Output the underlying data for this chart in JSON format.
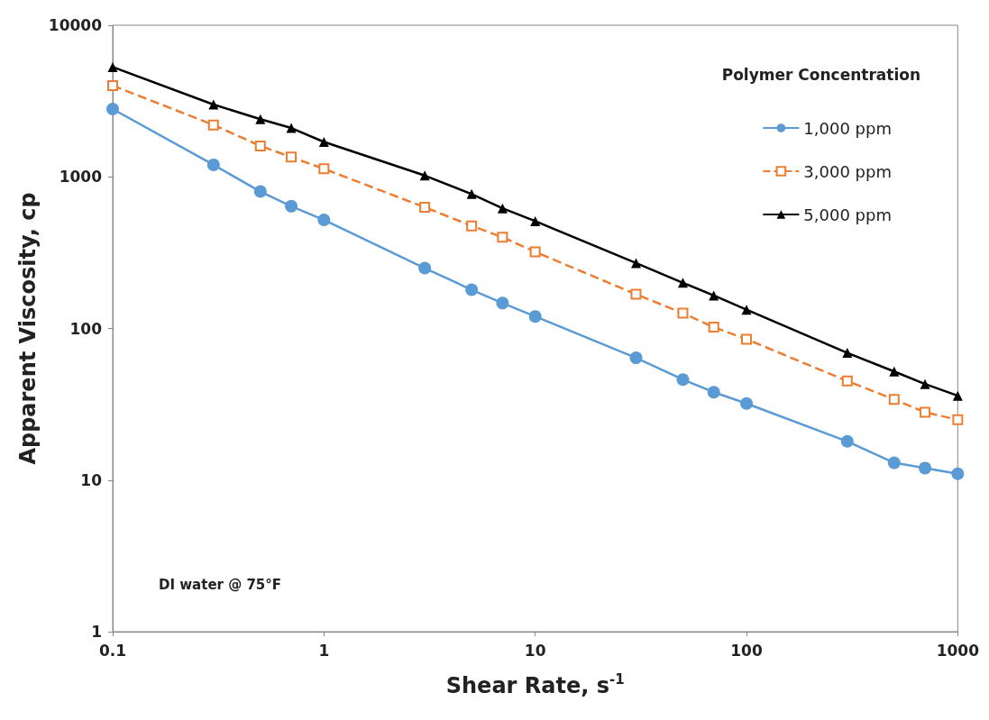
{
  "chart_data": {
    "type": "line",
    "xlabel": "Shear Rate, s$^{-1}$",
    "ylabel": "Apparent Viscosity, cp",
    "legend_title": "Polymer Concentration",
    "legend": "top right",
    "log": "xy",
    "grid": false,
    "x": [
      0.1,
      0.3,
      0.5,
      0.7,
      1,
      3,
      5,
      7,
      10,
      30,
      50,
      70,
      100,
      300,
      500,
      700,
      1000
    ],
    "xlim": [
      0.1,
      1000
    ],
    "xticks": [
      0.1,
      1,
      10,
      100,
      1000
    ],
    "ylim": [
      1,
      10000
    ],
    "yticks": [
      1,
      10,
      100,
      1000,
      10000
    ],
    "annotations": [
      "DI water @ 75°F"
    ],
    "series": [
      {
        "name": "1,000 ppm",
        "color": "#5b9bd5",
        "marker": "circle",
        "line_style": "solid",
        "values": [
          2800,
          1200,
          800,
          640,
          520,
          250,
          180,
          147,
          120,
          64,
          46,
          38,
          32,
          18,
          13,
          12,
          11
        ]
      },
      {
        "name": "3,000 ppm",
        "color": "#ed7d31",
        "marker": "square",
        "line_style": "dashed",
        "values": [
          4000,
          2200,
          1600,
          1350,
          1130,
          630,
          475,
          400,
          320,
          168,
          126,
          102,
          85,
          45,
          34,
          28,
          25
        ]
      },
      {
        "name": "5,000 ppm",
        "color": "#000000",
        "marker": "triangle",
        "line_style": "solid",
        "values": [
          5300,
          3000,
          2400,
          2100,
          1700,
          1020,
          770,
          620,
          510,
          270,
          200,
          165,
          133,
          69,
          52,
          43,
          36
        ]
      }
    ]
  }
}
